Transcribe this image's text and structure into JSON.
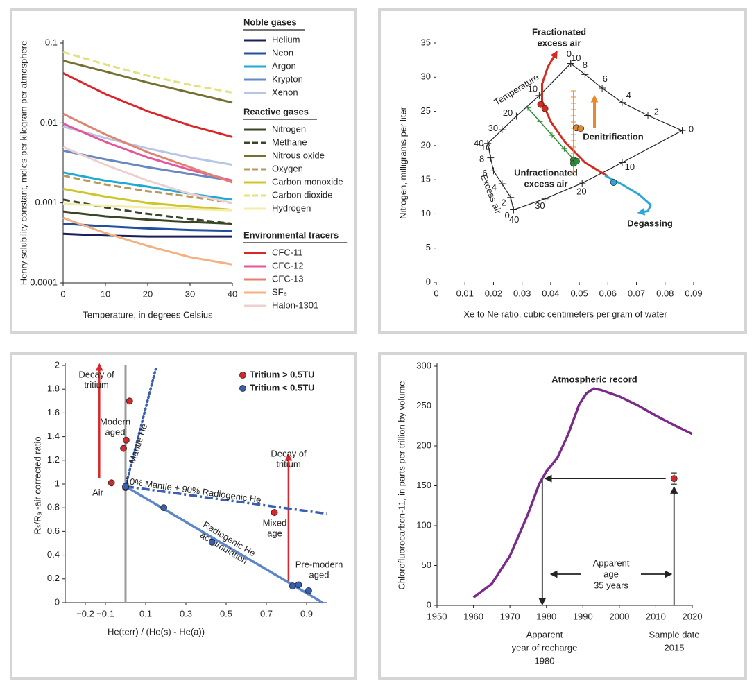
{
  "chart_data": [
    {
      "type": "line",
      "log_y": true,
      "xlabel": "Temperature, in degrees Celsius",
      "ylabel": "Henry solubility constant, moles per kilogram per atmosphere",
      "x": [
        0,
        10,
        20,
        30,
        40
      ],
      "xlim": [
        0,
        40
      ],
      "xticks": [
        0,
        10,
        20,
        30,
        40
      ],
      "ylim": [
        0.0001,
        0.1
      ],
      "yticks": [
        0.0001,
        0.001,
        0.01,
        0.1
      ],
      "legend_groups": [
        {
          "title": "Noble gases",
          "series": [
            {
              "name": "Helium",
              "color": "#1c1f5a",
              "dashed": false,
              "values": [
                0.00041,
                0.00039,
                0.00038,
                0.00038,
                0.00038
              ]
            },
            {
              "name": "Neon",
              "color": "#2150a0",
              "dashed": false,
              "values": [
                0.00055,
                0.00051,
                0.00048,
                0.00046,
                0.00045
              ]
            },
            {
              "name": "Argon",
              "color": "#1fa9d6",
              "dashed": false,
              "values": [
                0.0024,
                0.0019,
                0.0016,
                0.0013,
                0.0011
              ]
            },
            {
              "name": "Krypton",
              "color": "#6688bf",
              "dashed": false,
              "values": [
                0.0045,
                0.0035,
                0.0028,
                0.0023,
                0.0019
              ]
            },
            {
              "name": "Xenon",
              "color": "#b7c6e6",
              "dashed": false,
              "values": [
                0.009,
                0.0065,
                0.0048,
                0.0037,
                0.003
              ]
            }
          ]
        },
        {
          "title": "Reactive gases",
          "series": [
            {
              "name": "Nitrogen",
              "color": "#394626",
              "dashed": false,
              "values": [
                0.00078,
                0.00068,
                0.00062,
                0.00058,
                0.00055
              ]
            },
            {
              "name": "Methane",
              "color": "#394626",
              "dashed": true,
              "values": [
                0.0011,
                0.00088,
                0.00073,
                0.00063,
                0.00055
              ]
            },
            {
              "name": "Nitrous oxide",
              "color": "#75702f",
              "dashed": false,
              "values": [
                0.06,
                0.044,
                0.032,
                0.024,
                0.018
              ]
            },
            {
              "name": "Oxygen",
              "color": "#b9995a",
              "dashed": true,
              "values": [
                0.0022,
                0.0017,
                0.0014,
                0.0012,
                0.001
              ]
            },
            {
              "name": "Carbon monoxide",
              "color": "#cfc42a",
              "dashed": false,
              "values": [
                0.0015,
                0.0012,
                0.001,
                0.0009,
                0.00082
              ]
            },
            {
              "name": "Carbon dioxide",
              "color": "#e4e07a",
              "dashed": true,
              "values": [
                0.077,
                0.054,
                0.039,
                0.03,
                0.024
              ]
            },
            {
              "name": "Hydrogen",
              "color": "#f2eeaa",
              "dashed": false,
              "values": [
                0.00098,
                0.00092,
                0.00088,
                0.00084,
                0.00081
              ]
            }
          ]
        },
        {
          "title": "Environmental tracers",
          "series": [
            {
              "name": "CFC-11",
              "color": "#d9262a",
              "dashed": false,
              "values": [
                0.042,
                0.023,
                0.014,
                0.0093,
                0.0067
              ]
            },
            {
              "name": "CFC-12",
              "color": "#e5559a",
              "dashed": false,
              "values": [
                0.0098,
                0.0058,
                0.0037,
                0.0026,
                0.0019
              ]
            },
            {
              "name": "CFC-13",
              "color": "#e2826e",
              "dashed": false,
              "values": [
                0.013,
                0.0072,
                0.0043,
                0.0028,
                0.0018
              ]
            },
            {
              "name": "SF₆",
              "color": "#f4b083",
              "dashed": false,
              "values": [
                0.00065,
                0.00042,
                0.00029,
                0.00021,
                0.00017
              ]
            },
            {
              "name": "Halon-1301",
              "color": "#edcfd0",
              "dashed": false,
              "values": [
                0.005,
                0.003,
                0.0019,
                0.0013,
                0.001
              ]
            }
          ]
        }
      ]
    },
    {
      "type": "scatter",
      "xlabel": "Xe to Ne ratio, cubic centimeters per gram of water",
      "ylabel": "Nitrogen, milligrams per liter",
      "xlim": [
        0,
        0.09
      ],
      "xticks": [
        0,
        0.01,
        0.02,
        0.03,
        0.04,
        0.05,
        0.06,
        0.07,
        0.08,
        0.09
      ],
      "ylim": [
        0,
        35
      ],
      "yticks": [
        0,
        5,
        10,
        15,
        20,
        25,
        30,
        35
      ],
      "frame": {
        "x": [
          0.018,
          0.023,
          0.028,
          0.036,
          0.047,
          0.052,
          0.058,
          0.065,
          0.074,
          0.086,
          0.065,
          0.051,
          0.038,
          0.027,
          0.026,
          0.023,
          0.02,
          0.019
        ],
        "y": [
          20.3,
          22.3,
          24.3,
          27.3,
          32,
          30.4,
          28.4,
          26.3,
          24.4,
          22.2,
          17.5,
          14.5,
          12.2,
          10.6,
          12.4,
          14.4,
          16.3,
          18.2
        ]
      },
      "frame_titles": [
        "Temperature",
        "Excess air"
      ],
      "frame_ticks": [
        {
          "value": 40,
          "x": 0.018,
          "y": 20.3
        },
        {
          "value": 30,
          "x": 0.023,
          "y": 22.3
        },
        {
          "value": 20,
          "x": 0.028,
          "y": 24.3
        },
        {
          "value": 10,
          "x": 0.036,
          "y": 27.3
        },
        {
          "value": 0,
          "x": 0.047,
          "y": 32
        },
        {
          "value": 10,
          "x": 0.047,
          "y": 32
        },
        {
          "value": 8,
          "x": 0.052,
          "y": 30.4
        },
        {
          "value": 6,
          "x": 0.058,
          "y": 28.4
        },
        {
          "value": 4,
          "x": 0.065,
          "y": 26.3
        },
        {
          "value": 2,
          "x": 0.074,
          "y": 24.4
        },
        {
          "value": 0,
          "x": 0.086,
          "y": 22.2
        },
        {
          "value": 10,
          "x": 0.018,
          "y": 20.3
        },
        {
          "value": 8,
          "x": 0.019,
          "y": 18.2
        },
        {
          "value": 6,
          "x": 0.02,
          "y": 16.3
        },
        {
          "value": 4,
          "x": 0.023,
          "y": 14.4
        },
        {
          "value": 2,
          "x": 0.026,
          "y": 12.4
        },
        {
          "value": 0,
          "x": 0.027,
          "y": 10.6
        },
        {
          "value": 40,
          "x": 0.027,
          "y": 10.6
        },
        {
          "value": 30,
          "x": 0.038,
          "y": 12.2
        },
        {
          "value": 20,
          "x": 0.051,
          "y": 14.5
        },
        {
          "value": 10,
          "x": 0.065,
          "y": 17.5
        }
      ],
      "curves": [
        {
          "label": [
            "Fractionated",
            "excess air"
          ],
          "color": "#d62a1e",
          "arrow": true,
          "x": [
            0.06,
            0.052,
            0.045,
            0.04,
            0.037,
            0.037,
            0.039,
            0.042
          ],
          "y": [
            15.5,
            17.5,
            20.5,
            23.5,
            26.5,
            29,
            31.5,
            33.6
          ]
        },
        {
          "label": [
            "Degassing"
          ],
          "color": "#2aa6da",
          "arrow": true,
          "x": [
            0.059,
            0.065,
            0.071,
            0.075,
            0.074,
            0.071
          ],
          "y": [
            15.6,
            14.3,
            12.8,
            11.3,
            10.4,
            10.2
          ]
        },
        {
          "label": [
            "Unfractionated",
            "excess air"
          ],
          "color": "#2e8b3a",
          "arrow": false,
          "x": [
            0.032,
            0.049
          ],
          "y": [
            25.5,
            17.5
          ]
        },
        {
          "label": [
            "Denitrification"
          ],
          "color": "#e88a2b",
          "arrow": false,
          "x": [
            0.048,
            0.048
          ],
          "y": [
            16,
            28
          ]
        }
      ],
      "points": {
        "x": [
          0.0365,
          0.038,
          0.049,
          0.0505,
          0.048,
          0.048,
          0.049,
          0.062
        ],
        "y": [
          26.0,
          25.4,
          22.6,
          22.5,
          17.9,
          17.4,
          17.7,
          14.6
        ],
        "colors": [
          "#d62a1e",
          "#d62a1e",
          "#e88a2b",
          "#e88a2b",
          "#2e8b3a",
          "#2e8b3a",
          "#2e8b3a",
          "#2aa6da"
        ]
      }
    },
    {
      "type": "scatter",
      "xlabel": "He(terr) / (He(s) - He(a))",
      "ylabel": "Rₛ/Rₐ -air corrected ratio",
      "xlim": [
        -0.3,
        1.0
      ],
      "xticks": [
        {
          "value": -0.2,
          "label": "−0.2"
        },
        {
          "value": -0.1,
          "label": "−0.1"
        },
        0.1,
        0.3,
        0.5,
        0.7,
        0.9
      ],
      "ylim": [
        0,
        2
      ],
      "yticks": [
        0,
        0.2,
        0.4,
        0.6,
        0.8,
        1,
        1.2,
        1.4,
        1.6,
        1.8,
        2
      ],
      "series": [
        {
          "name": "Tritium > 0.5TU",
          "color": "#d9262a",
          "x": [
            -0.07,
            -0.01,
            0.003,
            0.02,
            0.0,
            0.74
          ],
          "y": [
            1.01,
            1.3,
            1.37,
            1.7,
            0.97,
            0.76
          ]
        },
        {
          "name": "Tritium < 0.5TU",
          "color": "#3b5fb0",
          "x": [
            0.0,
            0.19,
            0.43,
            0.83,
            0.86,
            0.91
          ],
          "y": [
            0.98,
            0.8,
            0.51,
            0.14,
            0.15,
            0.1
          ]
        }
      ],
      "lines": [
        {
          "label": [
            "Air"
          ],
          "color": "#999999",
          "style": "solid",
          "arrow": false,
          "x": [
            0,
            0
          ],
          "y": [
            0,
            2
          ]
        },
        {
          "label": [
            "Decay of",
            "tritium"
          ],
          "color": "#d9262a",
          "style": "solid",
          "arrow": true,
          "x": [
            -0.13,
            -0.13
          ],
          "y": [
            1.05,
            2.0
          ]
        },
        {
          "label": [
            "Decay of",
            "tritium"
          ],
          "color": "#d9262a",
          "style": "solid",
          "arrow": true,
          "x": [
            0.81,
            0.81
          ],
          "y": [
            0.17,
            1.24
          ]
        },
        {
          "label": [
            "Mantle He"
          ],
          "color": "#3b5fb0",
          "style": "dotted",
          "arrow": false,
          "x": [
            0,
            0.15
          ],
          "y": [
            0.98,
            1.97
          ]
        },
        {
          "label": [
            "10% Mantle + 90% Radiogenic He"
          ],
          "color": "#3b5fb0",
          "style": "dashdot",
          "arrow": false,
          "x": [
            0,
            1.0
          ],
          "y": [
            0.98,
            0.75
          ]
        },
        {
          "label": [
            "Radiogenic He",
            "accumulation"
          ],
          "color": "#5b86c8",
          "style": "solid",
          "arrow": false,
          "x": [
            0,
            0.98
          ],
          "y": [
            0.98,
            0
          ]
        }
      ],
      "annotations": [
        {
          "lines": [
            "Modern",
            "aged"
          ],
          "color": "#c0392b"
        },
        {
          "lines": [
            "Mixed",
            "age"
          ],
          "color": "#2e8b3a"
        },
        {
          "lines": [
            "Pre-modern",
            "aged"
          ],
          "color": "#3b5fb0"
        }
      ]
    },
    {
      "type": "line",
      "ylabel": "Chlorofluorocarbon-11, in parts per trillion by volume",
      "xlim": [
        1950,
        2020
      ],
      "xticks": [
        1950,
        1960,
        1970,
        1980,
        1990,
        2000,
        2010,
        2020
      ],
      "ylim": [
        0,
        300
      ],
      "yticks": [
        0,
        50,
        100,
        150,
        200,
        250,
        300
      ],
      "series": {
        "name": "Atmospheric record",
        "color": "#7b2a8a",
        "x": [
          1960,
          1965,
          1970,
          1975,
          1978,
          1980,
          1983,
          1986,
          1989,
          1991,
          1993,
          1995,
          2000,
          2005,
          2010,
          2015,
          2020
        ],
        "values": [
          10,
          27,
          62,
          115,
          152,
          168,
          185,
          215,
          252,
          266,
          272,
          270,
          262,
          251,
          238,
          226,
          215
        ]
      },
      "sample": {
        "x": 2015,
        "y": 159,
        "error": 7,
        "color": "#d9262a"
      },
      "annotations": [
        {
          "lines": [
            "Apparent",
            "age",
            "35 years"
          ],
          "color": "#d9262a"
        },
        {
          "lines": [
            "Apparent",
            "year of recharge",
            "1980"
          ],
          "color": "#222222"
        },
        {
          "lines": [
            "Sample date",
            "2015"
          ],
          "color": "#222222"
        }
      ]
    }
  ]
}
